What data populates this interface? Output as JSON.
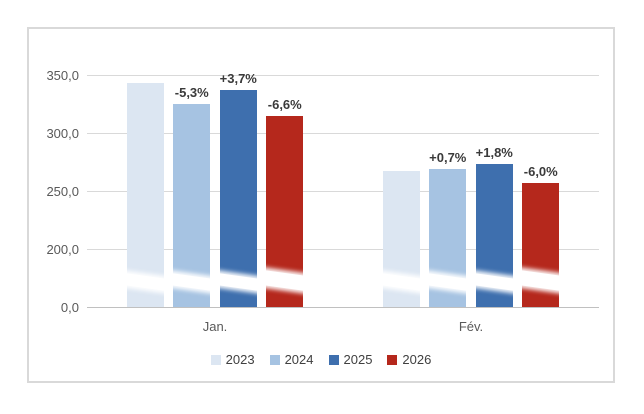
{
  "chart_data": {
    "type": "bar",
    "title": "",
    "categories": [
      "Jan.",
      "Fév."
    ],
    "series": [
      {
        "name": "2023",
        "color": "#dce6f2",
        "values": [
          343.0,
          266.9
        ],
        "change_labels": [
          "",
          ""
        ]
      },
      {
        "name": "2024",
        "color": "#a6c3e2",
        "values": [
          324.8,
          268.8
        ],
        "change_labels": [
          "-5,3%",
          "+0,7%"
        ]
      },
      {
        "name": "2025",
        "color": "#3e6fae",
        "values": [
          336.9,
          273.6
        ],
        "change_labels": [
          "+3,7%",
          "+1,8%"
        ]
      },
      {
        "name": "2026",
        "color": "#b5281c",
        "values": [
          314.6,
          257.2
        ],
        "change_labels": [
          "-6,6%",
          "-6,0%"
        ]
      }
    ],
    "y_axis": {
      "tick_labels": [
        "350,0",
        "300,0",
        "250,0",
        "200,0",
        "0,0"
      ],
      "tick_values": [
        350,
        300,
        250,
        200,
        0
      ],
      "broken_axis": true,
      "break_between": [
        0,
        200
      ],
      "number_format": "french-decimal-comma"
    },
    "legend": [
      "2023",
      "2024",
      "2025",
      "2026"
    ],
    "legend_position": "bottom",
    "grid": true,
    "colors": {
      "gridline": "#d9d9d9",
      "axis_line": "#c0c0c0",
      "frame_border": "#d9d9d9",
      "tick_text": "#595959",
      "data_label_text": "#3a3a3a",
      "legend_text": "#404040",
      "background": "#ffffff"
    }
  }
}
